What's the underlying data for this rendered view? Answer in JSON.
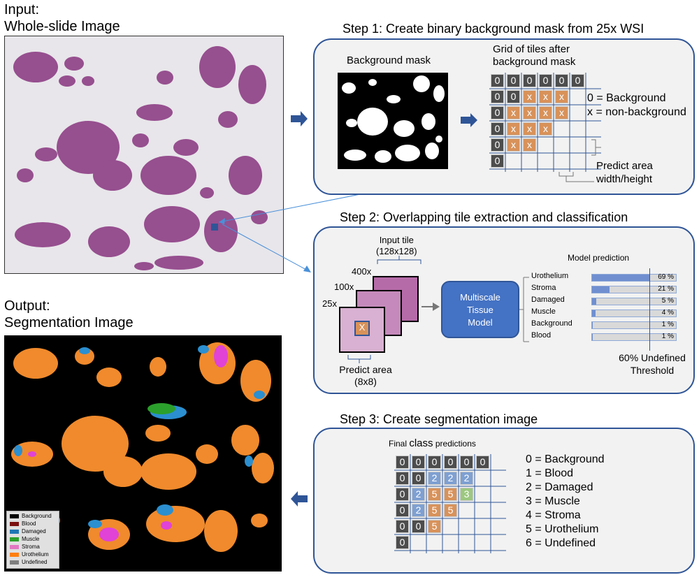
{
  "input": {
    "title_line1": "Input:",
    "title_line2": "Whole-slide Image"
  },
  "output": {
    "title_line1": "Output:",
    "title_line2": "Segmentation Image"
  },
  "step1": {
    "title": "Step 1: Create binary background mask from 25x WSI",
    "mask_label": "Background mask",
    "grid_label_line1": "Grid of tiles after",
    "grid_label_line2": "background mask",
    "key_background": "0 = Background",
    "key_nonbackground": "x = non-background",
    "predict_line1": "Predict area",
    "predict_line2": "width/height",
    "grid": [
      [
        "0",
        "0",
        "0",
        "0",
        "0",
        "0"
      ],
      [
        "0",
        "0",
        "x",
        "x",
        "x"
      ],
      [
        "0",
        "x",
        "x",
        "x",
        "x"
      ],
      [
        "0",
        "x",
        "x",
        "x"
      ],
      [
        "0",
        "x",
        "x"
      ],
      [
        "0"
      ]
    ]
  },
  "step2": {
    "title": "Step 2: Overlapping tile extraction and classification",
    "input_tile_line1": "Input tile",
    "input_tile_line2": "(128x128)",
    "mag_400": "400x",
    "mag_100": "100x",
    "mag_25": "25x",
    "tile_mark": "X",
    "predict_line1": "Predict area",
    "predict_line2": "(8x8)",
    "model_line1": "Multiscale",
    "model_line2": "Tissue",
    "model_line3": "Model",
    "prediction_title": "Model prediction",
    "threshold_line1": "60% Undefined",
    "threshold_line2": "Threshold"
  },
  "chart_data": {
    "type": "bar",
    "title": "Model prediction",
    "categories": [
      "Urothelium",
      "Stroma",
      "Damaged",
      "Muscle",
      "Background",
      "Blood"
    ],
    "values": [
      69,
      21,
      5,
      4,
      1,
      1
    ],
    "value_labels": [
      "69 %",
      "21 %",
      "5 %",
      "4 %",
      "1 %",
      "1 %"
    ],
    "xlim": [
      0,
      100
    ],
    "threshold": 60,
    "orientation": "horizontal",
    "colors": {
      "fill": "#6f8fd0",
      "track": "#d9d9d9"
    }
  },
  "step3": {
    "title": "Step 3: Create segmentation image",
    "final_label_a": "Final ",
    "final_label_b": "class",
    "final_label_c": " predictions",
    "grid": [
      [
        "0",
        "0",
        "0",
        "0",
        "0",
        "0"
      ],
      [
        "0",
        "0",
        "2",
        "2",
        "2"
      ],
      [
        "0",
        "2",
        "5",
        "5",
        "3"
      ],
      [
        "0",
        "2",
        "5",
        "5"
      ],
      [
        "0",
        "0",
        "5"
      ],
      [
        "0"
      ]
    ],
    "legend": [
      "0 = Background",
      "1 = Blood",
      "2 = Damaged",
      "3 = Muscle",
      "4 = Stroma",
      "5 = Urothelium",
      "6 = Undefined"
    ]
  },
  "seg_legend": [
    {
      "label": "Background",
      "color": "#000000"
    },
    {
      "label": "Blood",
      "color": "#7a1010"
    },
    {
      "label": "Damaged",
      "color": "#1f77b4"
    },
    {
      "label": "Muscle",
      "color": "#2ca02c"
    },
    {
      "label": "Stroma",
      "color": "#e377c2"
    },
    {
      "label": "Urothelium",
      "color": "#ff7f0e"
    },
    {
      "label": "Undefined",
      "color": "#7f7f7f"
    }
  ],
  "colors": {
    "arrow": "#2f5597",
    "panel_border": "#2f5597",
    "model_box": "#4472c4",
    "tissue": "#8e3f86",
    "orange": "#f08a2c",
    "blue": "#2b8fd0"
  }
}
